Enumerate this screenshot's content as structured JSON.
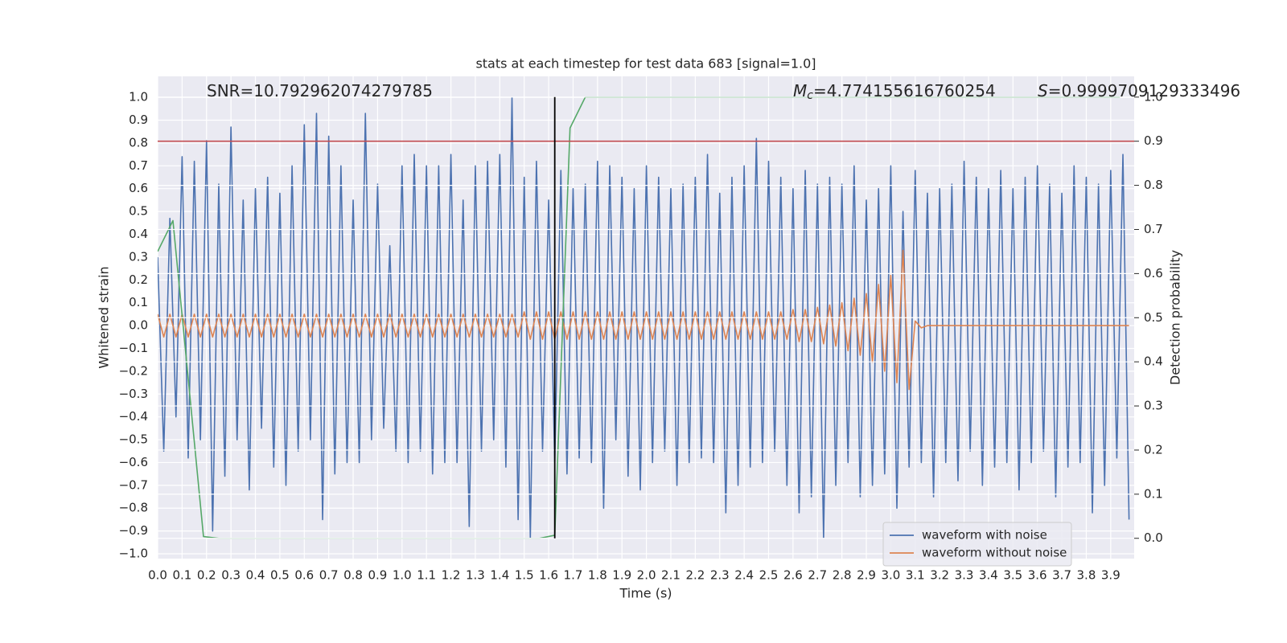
{
  "chart_data": {
    "type": "line",
    "title": "stats at each timestep for test data 683 [signal=1.0]",
    "xlabel": "Time (s)",
    "ylabel": "Whitened strain",
    "y2label": "Detection probability",
    "xlim": [
      0,
      3.996
    ],
    "ylim": [
      -1.021,
      1.092
    ],
    "y2lim": [
      -0.046,
      1.047
    ],
    "grid": true,
    "legend": "lower right",
    "xticks": [
      {
        "value": 0,
        "label": "0.0"
      },
      0.1,
      0.2,
      0.3,
      0.4,
      0.5,
      0.6,
      0.7,
      0.8,
      0.9,
      {
        "value": 1,
        "label": "1.0"
      },
      1.1,
      1.2,
      1.3,
      1.4,
      1.5,
      1.6,
      1.7,
      1.8,
      1.9,
      {
        "value": 2,
        "label": "2.0"
      },
      2.1,
      2.2,
      2.3,
      2.4,
      2.5,
      2.6,
      2.7,
      2.8,
      2.9,
      {
        "value": 3,
        "label": "3.0"
      },
      3.1,
      3.2,
      3.3,
      3.4,
      3.5,
      3.6,
      3.7,
      3.8,
      3.9
    ],
    "yticks": [
      {
        "value": -1,
        "label": "−1.0"
      },
      {
        "value": -0.9,
        "label": "−0.9"
      },
      {
        "value": -0.8,
        "label": "−0.8"
      },
      {
        "value": -0.7,
        "label": "−0.7"
      },
      {
        "value": -0.6,
        "label": "−0.6"
      },
      {
        "value": -0.5,
        "label": "−0.5"
      },
      {
        "value": -0.4,
        "label": "−0.4"
      },
      {
        "value": -0.3,
        "label": "−0.3"
      },
      {
        "value": -0.2,
        "label": "−0.2"
      },
      {
        "value": -0.1,
        "label": "−0.1"
      },
      {
        "value": 0,
        "label": "0.0"
      },
      0.1,
      0.2,
      0.3,
      0.4,
      0.5,
      0.6,
      0.7,
      0.8,
      0.9,
      {
        "value": 1,
        "label": "1.0"
      }
    ],
    "y2ticks": [
      {
        "value": 0,
        "label": "0.0"
      },
      0.1,
      0.2,
      0.3,
      0.4,
      0.5,
      0.6,
      0.7,
      0.8,
      0.9,
      {
        "value": 1,
        "label": "1.0"
      }
    ],
    "series": [
      {
        "name": "waveform with noise",
        "color": "#4c72b0",
        "x": [
          0,
          0.025,
          0.05,
          0.075,
          0.1,
          0.125,
          0.15,
          0.175,
          0.2,
          0.225,
          0.25,
          0.275,
          0.3,
          0.325,
          0.35,
          0.375,
          0.4,
          0.425,
          0.45,
          0.475,
          0.5,
          0.525,
          0.55,
          0.575,
          0.6,
          0.625,
          0.65,
          0.675,
          0.7,
          0.725,
          0.75,
          0.775,
          0.8,
          0.825,
          0.85,
          0.875,
          0.9,
          0.925,
          0.95,
          0.975,
          1,
          1.025,
          1.05,
          1.075,
          1.1,
          1.125,
          1.15,
          1.175,
          1.2,
          1.225,
          1.25,
          1.275,
          1.3,
          1.325,
          1.35,
          1.375,
          1.4,
          1.425,
          1.45,
          1.475,
          1.5,
          1.525,
          1.55,
          1.575,
          1.6,
          1.625,
          1.65,
          1.675,
          1.7,
          1.725,
          1.75,
          1.775,
          1.8,
          1.825,
          1.85,
          1.875,
          1.9,
          1.925,
          1.95,
          1.975,
          2,
          2.025,
          2.05,
          2.075,
          2.1,
          2.125,
          2.15,
          2.175,
          2.2,
          2.225,
          2.25,
          2.275,
          2.3,
          2.325,
          2.35,
          2.375,
          2.4,
          2.425,
          2.45,
          2.475,
          2.5,
          2.525,
          2.55,
          2.575,
          2.6,
          2.625,
          2.65,
          2.675,
          2.7,
          2.725,
          2.75,
          2.775,
          2.8,
          2.825,
          2.85,
          2.875,
          2.9,
          2.925,
          2.95,
          2.975,
          3,
          3.025,
          3.05,
          3.075,
          3.1,
          3.125,
          3.15,
          3.175,
          3.2,
          3.225,
          3.25,
          3.275,
          3.3,
          3.325,
          3.35,
          3.375,
          3.4,
          3.425,
          3.45,
          3.475,
          3.5,
          3.525,
          3.55,
          3.575,
          3.6,
          3.625,
          3.65,
          3.675,
          3.7,
          3.725,
          3.75,
          3.775,
          3.8,
          3.825,
          3.85,
          3.875,
          3.9,
          3.925,
          3.95,
          3.975
        ],
        "values": [
          0.3,
          -0.55,
          0.47,
          -0.4,
          0.74,
          -0.58,
          0.72,
          -0.5,
          0.81,
          -0.9,
          0.62,
          -0.66,
          0.87,
          -0.5,
          0.55,
          -0.72,
          0.6,
          -0.45,
          0.65,
          -0.62,
          0.58,
          -0.7,
          0.7,
          -0.55,
          0.88,
          -0.5,
          0.93,
          -0.85,
          0.83,
          -0.65,
          0.7,
          -0.6,
          0.55,
          -0.6,
          0.93,
          -0.5,
          0.62,
          -0.45,
          0.35,
          -0.55,
          0.7,
          -0.6,
          0.75,
          -0.55,
          0.7,
          -0.65,
          0.7,
          -0.6,
          0.75,
          -0.6,
          0.55,
          -0.88,
          0.7,
          -0.55,
          0.72,
          -0.5,
          0.75,
          -0.62,
          1.0,
          -0.85,
          0.65,
          -0.93,
          0.72,
          -0.55,
          0.55,
          -0.6,
          0.68,
          -0.65,
          0.6,
          -0.58,
          0.62,
          -0.6,
          0.72,
          -0.8,
          0.7,
          -0.5,
          0.65,
          -0.66,
          0.6,
          -0.72,
          0.7,
          -0.6,
          0.65,
          -0.55,
          0.6,
          -0.7,
          0.62,
          -0.6,
          0.65,
          -0.58,
          0.75,
          -0.6,
          0.58,
          -0.82,
          0.65,
          -0.7,
          0.7,
          -0.62,
          0.82,
          -0.6,
          0.72,
          -0.55,
          0.65,
          -0.7,
          0.6,
          -0.82,
          0.68,
          -0.75,
          0.62,
          -0.93,
          0.65,
          -0.7,
          0.62,
          -0.6,
          0.7,
          -0.75,
          0.55,
          -0.7,
          0.6,
          -0.65,
          0.7,
          -0.8,
          0.5,
          -0.62,
          0.68,
          -0.6,
          0.58,
          -0.75,
          0.6,
          -0.6,
          0.62,
          -0.68,
          0.72,
          -0.55,
          0.65,
          -0.7,
          0.6,
          -0.62,
          0.68,
          -0.6,
          0.6,
          -0.72,
          0.65,
          -0.6,
          0.7,
          -0.55,
          0.62,
          -0.75,
          0.58,
          -0.62,
          0.7,
          -0.6,
          0.65,
          -0.82,
          0.62,
          -0.7,
          0.68,
          -0.58,
          0.75,
          -0.85
        ]
      },
      {
        "name": "waveform without noise",
        "color": "#dd8452",
        "x": [
          0,
          0.025,
          0.05,
          0.075,
          0.1,
          0.125,
          0.15,
          0.175,
          0.2,
          0.225,
          0.25,
          0.275,
          0.3,
          0.325,
          0.35,
          0.375,
          0.4,
          0.425,
          0.45,
          0.475,
          0.5,
          0.525,
          0.55,
          0.575,
          0.6,
          0.625,
          0.65,
          0.675,
          0.7,
          0.725,
          0.75,
          0.775,
          0.8,
          0.825,
          0.85,
          0.875,
          0.9,
          0.925,
          0.95,
          0.975,
          1,
          1.025,
          1.05,
          1.075,
          1.1,
          1.125,
          1.15,
          1.175,
          1.2,
          1.225,
          1.25,
          1.275,
          1.3,
          1.325,
          1.35,
          1.375,
          1.4,
          1.425,
          1.45,
          1.475,
          1.5,
          1.525,
          1.55,
          1.575,
          1.6,
          1.625,
          1.65,
          1.675,
          1.7,
          1.725,
          1.75,
          1.775,
          1.8,
          1.825,
          1.85,
          1.875,
          1.9,
          1.925,
          1.95,
          1.975,
          2,
          2.025,
          2.05,
          2.075,
          2.1,
          2.125,
          2.15,
          2.175,
          2.2,
          2.225,
          2.25,
          2.275,
          2.3,
          2.325,
          2.35,
          2.375,
          2.4,
          2.425,
          2.45,
          2.475,
          2.5,
          2.525,
          2.55,
          2.575,
          2.6,
          2.625,
          2.65,
          2.675,
          2.7,
          2.725,
          2.75,
          2.775,
          2.8,
          2.825,
          2.85,
          2.875,
          2.9,
          2.925,
          2.95,
          2.975,
          3,
          3.025,
          3.05,
          3.075,
          3.1,
          3.125,
          3.15,
          3.175,
          3.2,
          3.225,
          3.25,
          3.275,
          3.3,
          3.325,
          3.35,
          3.375,
          3.4,
          3.425,
          3.45,
          3.475,
          3.5,
          3.525,
          3.55,
          3.575,
          3.6,
          3.625,
          3.65,
          3.675,
          3.7,
          3.725,
          3.75,
          3.775,
          3.8,
          3.825,
          3.85,
          3.875,
          3.9,
          3.925,
          3.95,
          3.975
        ],
        "values": [
          0.05,
          -0.05,
          0.05,
          -0.05,
          0.05,
          -0.05,
          0.05,
          -0.05,
          0.05,
          -0.05,
          0.05,
          -0.05,
          0.05,
          -0.05,
          0.05,
          -0.05,
          0.05,
          -0.05,
          0.05,
          -0.05,
          0.05,
          -0.05,
          0.05,
          -0.05,
          0.05,
          -0.05,
          0.05,
          -0.05,
          0.05,
          -0.05,
          0.05,
          -0.05,
          0.05,
          -0.05,
          0.05,
          -0.05,
          0.05,
          -0.05,
          0.05,
          -0.05,
          0.05,
          -0.05,
          0.05,
          -0.05,
          0.05,
          -0.05,
          0.05,
          -0.05,
          0.05,
          -0.05,
          0.05,
          -0.05,
          0.05,
          -0.05,
          0.05,
          -0.05,
          0.05,
          -0.05,
          0.05,
          -0.05,
          0.06,
          -0.06,
          0.06,
          -0.06,
          0.06,
          -0.06,
          0.06,
          -0.06,
          0.06,
          -0.06,
          0.06,
          -0.06,
          0.06,
          -0.06,
          0.06,
          -0.06,
          0.06,
          -0.06,
          0.06,
          -0.06,
          0.06,
          -0.06,
          0.06,
          -0.06,
          0.06,
          -0.06,
          0.06,
          -0.06,
          0.06,
          -0.06,
          0.06,
          -0.06,
          0.06,
          -0.06,
          0.06,
          -0.06,
          0.06,
          -0.06,
          0.06,
          -0.06,
          0.06,
          -0.06,
          0.06,
          -0.06,
          0.07,
          -0.07,
          0.07,
          -0.07,
          0.08,
          -0.08,
          0.09,
          -0.09,
          0.1,
          -0.11,
          0.12,
          -0.13,
          0.14,
          -0.16,
          0.18,
          -0.2,
          0.22,
          -0.25,
          0.33,
          -0.28,
          0.02,
          -0.01,
          0,
          0,
          0,
          0,
          0,
          0,
          0,
          0,
          0,
          0,
          0,
          0,
          0,
          0,
          0,
          0,
          0,
          0,
          0,
          0,
          0,
          0,
          0,
          0,
          0,
          0,
          0,
          0,
          0,
          0,
          0,
          0,
          0,
          0
        ]
      },
      {
        "color": "#55a868",
        "axis": "y2",
        "x": [
          0,
          0.0625,
          0.1875,
          0.25,
          1.5625,
          1.625,
          1.6875,
          1.75,
          3.9375
        ],
        "values": [
          0.65,
          0.72,
          0.004,
          0,
          0,
          0.007,
          0.93,
          1,
          1
        ]
      }
    ],
    "hlines": [
      {
        "axis": "y2",
        "value": 0.9,
        "color": "#c44e52"
      }
    ],
    "vlines": [
      {
        "axis": "y2",
        "x": 1.625,
        "ymin": 0,
        "ymax": 1,
        "color": "#000000"
      }
    ],
    "annotations": [
      {
        "text": "SNR=10.792962074279785"
      },
      {
        "symbol": "M",
        "subscript": "c",
        "text": "=4.774155616760254"
      },
      {
        "symbol": "S",
        "text": "=0.9999709129333496"
      }
    ]
  }
}
